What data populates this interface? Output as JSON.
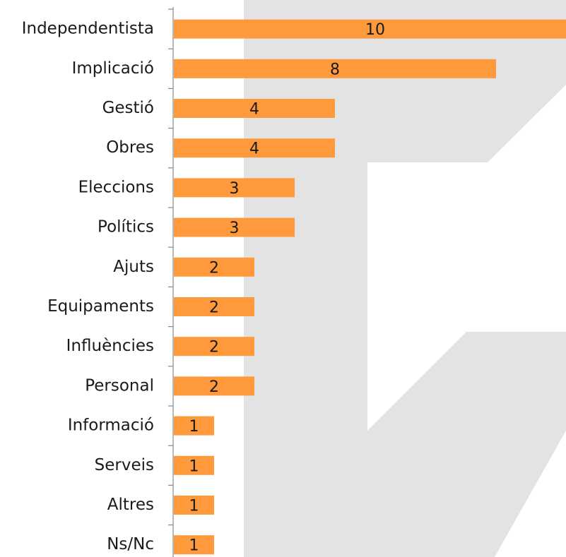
{
  "chart_data": {
    "type": "bar",
    "orientation": "horizontal",
    "categories": [
      "Independentista",
      "Implicació",
      "Gestió",
      "Obres",
      "Eleccions",
      "Polítics",
      "Ajuts",
      "Equipaments",
      "Influències",
      "Personal",
      "Informació",
      "Serveis",
      "Altres",
      "Ns/Nc"
    ],
    "values": [
      10,
      8,
      4,
      4,
      3,
      3,
      2,
      2,
      2,
      2,
      1,
      1,
      1,
      1
    ],
    "color": "#ff9a3c"
  }
}
